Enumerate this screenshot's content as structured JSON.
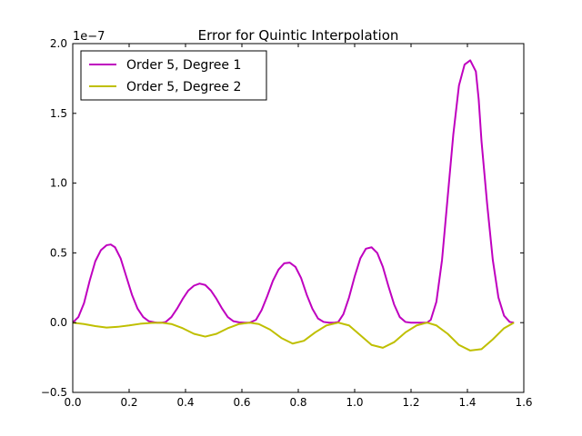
{
  "chart_data": {
    "type": "line",
    "title": "Error for Quintic Interpolation",
    "xlabel": "",
    "ylabel": "",
    "y_scale_label": "1e−7",
    "xlim": [
      0.0,
      1.6
    ],
    "ylim": [
      -0.5,
      2.0
    ],
    "x_ticks": [
      0.0,
      0.2,
      0.4,
      0.6,
      0.8,
      1.0,
      1.2,
      1.4,
      1.6
    ],
    "x_tick_labels": [
      "0.0",
      "0.2",
      "0.4",
      "0.6",
      "0.8",
      "1.0",
      "1.2",
      "1.4",
      "1.6"
    ],
    "y_ticks": [
      -0.5,
      0.0,
      0.5,
      1.0,
      1.5,
      2.0
    ],
    "y_tick_labels": [
      "−0.5",
      "0.0",
      "0.5",
      "1.0",
      "1.5",
      "2.0"
    ],
    "grid": false,
    "legend_position": "top-left",
    "series": [
      {
        "name": "Order 5, Degree 1",
        "color": "#bf00bf",
        "x": [
          0.0,
          0.02,
          0.04,
          0.06,
          0.08,
          0.1,
          0.12,
          0.135,
          0.15,
          0.17,
          0.19,
          0.21,
          0.23,
          0.25,
          0.27,
          0.29,
          0.3,
          0.315,
          0.33,
          0.35,
          0.37,
          0.39,
          0.41,
          0.43,
          0.45,
          0.47,
          0.49,
          0.51,
          0.53,
          0.55,
          0.57,
          0.59,
          0.61,
          0.628,
          0.65,
          0.67,
          0.69,
          0.71,
          0.73,
          0.75,
          0.77,
          0.79,
          0.81,
          0.83,
          0.85,
          0.87,
          0.89,
          0.91,
          0.928,
          0.942,
          0.96,
          0.98,
          1.0,
          1.02,
          1.04,
          1.06,
          1.08,
          1.1,
          1.12,
          1.14,
          1.16,
          1.18,
          1.2,
          1.22,
          1.24,
          1.257,
          1.27,
          1.29,
          1.31,
          1.33,
          1.35,
          1.37,
          1.39,
          1.41,
          1.43,
          1.44,
          1.45,
          1.47,
          1.49,
          1.51,
          1.53,
          1.55,
          1.565
        ],
        "y": [
          0.0,
          0.04,
          0.14,
          0.3,
          0.44,
          0.52,
          0.555,
          0.56,
          0.54,
          0.46,
          0.33,
          0.2,
          0.1,
          0.04,
          0.01,
          0.002,
          0.0,
          0.0,
          0.005,
          0.04,
          0.1,
          0.17,
          0.23,
          0.265,
          0.28,
          0.27,
          0.23,
          0.17,
          0.1,
          0.04,
          0.01,
          0.002,
          0.0,
          0.0,
          0.02,
          0.09,
          0.19,
          0.3,
          0.38,
          0.425,
          0.43,
          0.4,
          0.32,
          0.2,
          0.1,
          0.03,
          0.005,
          0.0,
          0.0,
          0.005,
          0.06,
          0.18,
          0.33,
          0.46,
          0.53,
          0.54,
          0.5,
          0.4,
          0.26,
          0.13,
          0.04,
          0.005,
          0.0,
          0.0,
          0.0,
          0.0,
          0.02,
          0.15,
          0.45,
          0.9,
          1.35,
          1.7,
          1.85,
          1.88,
          1.8,
          1.6,
          1.3,
          0.85,
          0.45,
          0.18,
          0.05,
          0.005,
          0.0
        ]
      },
      {
        "name": "Order 5, Degree 2",
        "color": "#bfbf00",
        "x": [
          0.0,
          0.04,
          0.08,
          0.12,
          0.16,
          0.2,
          0.24,
          0.28,
          0.315,
          0.35,
          0.39,
          0.43,
          0.47,
          0.51,
          0.55,
          0.59,
          0.628,
          0.66,
          0.7,
          0.74,
          0.78,
          0.82,
          0.86,
          0.9,
          0.942,
          0.98,
          1.02,
          1.06,
          1.1,
          1.14,
          1.18,
          1.22,
          1.257,
          1.29,
          1.33,
          1.37,
          1.41,
          1.45,
          1.49,
          1.53,
          1.565
        ],
        "y": [
          0.0,
          -0.01,
          -0.025,
          -0.035,
          -0.03,
          -0.02,
          -0.008,
          -0.002,
          0.0,
          -0.01,
          -0.04,
          -0.08,
          -0.1,
          -0.08,
          -0.04,
          -0.01,
          0.0,
          -0.01,
          -0.05,
          -0.11,
          -0.15,
          -0.13,
          -0.07,
          -0.02,
          0.0,
          -0.02,
          -0.09,
          -0.16,
          -0.18,
          -0.14,
          -0.07,
          -0.02,
          0.0,
          -0.02,
          -0.08,
          -0.16,
          -0.2,
          -0.19,
          -0.12,
          -0.04,
          0.0
        ]
      }
    ]
  }
}
